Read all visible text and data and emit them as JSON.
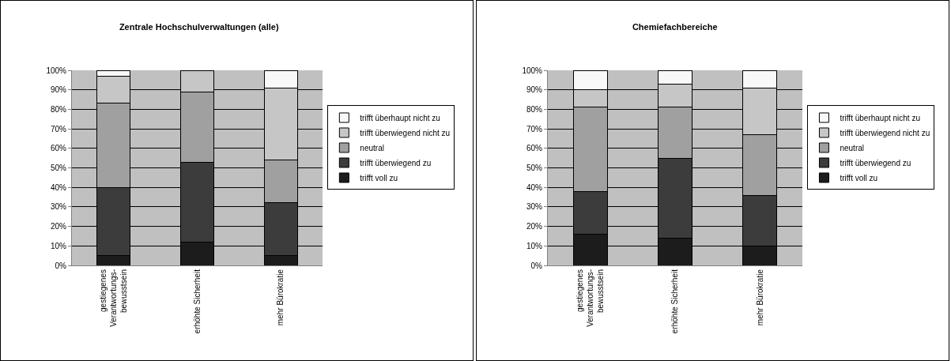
{
  "chart_data": [
    {
      "type": "bar",
      "title": "Zentrale Hochschulverwaltungen (alle)",
      "categories": [
        "gestiegenes\nVerantwortungs-\nbewusstsein",
        "erhöhte Sicherheit",
        "mehr Bürokratie"
      ],
      "stacked": true,
      "ylim": [
        0,
        100
      ],
      "yticks": [
        {
          "value": 0,
          "label": "0%"
        },
        {
          "value": 10,
          "label": "10%"
        },
        {
          "value": 20,
          "label": "20%"
        },
        {
          "value": 30,
          "label": "30%"
        },
        {
          "value": 40,
          "label": "40%"
        },
        {
          "value": 50,
          "label": "50%"
        },
        {
          "value": 60,
          "label": "60%"
        },
        {
          "value": 70,
          "label": "70%"
        },
        {
          "value": 80,
          "label": "80%"
        },
        {
          "value": 90,
          "label": "90%"
        },
        {
          "value": 100,
          "label": "100%"
        }
      ],
      "grid": "y",
      "legend": "right",
      "series": [
        {
          "name": "trifft voll zu",
          "color": "#1c1c1c",
          "values": [
            5,
            12,
            5
          ]
        },
        {
          "name": "trifft überwiegend zu",
          "color": "#3c3c3c",
          "values": [
            35,
            41,
            27
          ]
        },
        {
          "name": "neutral",
          "color": "#a0a0a0",
          "values": [
            43,
            36,
            22
          ]
        },
        {
          "name": "trifft überwiegend nicht zu",
          "color": "#c6c6c6",
          "values": [
            14,
            11,
            37
          ]
        },
        {
          "name": "trifft überhaupt nicht zu",
          "color": "#f8f8f8",
          "values": [
            3,
            null,
            9
          ]
        }
      ]
    },
    {
      "type": "bar",
      "title": "Chemiefachbereiche",
      "categories": [
        "gestiegenes\nVerantwortungs-\nbewusstsein",
        "erhöhte Sicherheit",
        "mehr Bürokratie"
      ],
      "stacked": true,
      "ylim": [
        0,
        100
      ],
      "yticks": [
        {
          "value": 0,
          "label": "0%"
        },
        {
          "value": 10,
          "label": "10%"
        },
        {
          "value": 20,
          "label": "20%"
        },
        {
          "value": 30,
          "label": "30%"
        },
        {
          "value": 40,
          "label": "40%"
        },
        {
          "value": 50,
          "label": "50%"
        },
        {
          "value": 60,
          "label": "60%"
        },
        {
          "value": 70,
          "label": "70%"
        },
        {
          "value": 80,
          "label": "80%"
        },
        {
          "value": 90,
          "label": "90%"
        },
        {
          "value": 100,
          "label": "100%"
        }
      ],
      "grid": "y",
      "legend": "right",
      "series": [
        {
          "name": "trifft voll zu",
          "color": "#1c1c1c",
          "values": [
            16,
            14,
            10
          ]
        },
        {
          "name": "trifft überwiegend zu",
          "color": "#3c3c3c",
          "values": [
            22,
            41,
            26
          ]
        },
        {
          "name": "neutral",
          "color": "#a0a0a0",
          "values": [
            43,
            26,
            31
          ]
        },
        {
          "name": "trifft überwiegend nicht zu",
          "color": "#c6c6c6",
          "values": [
            9,
            12,
            24
          ]
        },
        {
          "name": "trifft überhaupt nicht zu",
          "color": "#f8f8f8",
          "values": [
            10,
            7,
            9
          ]
        }
      ]
    }
  ]
}
